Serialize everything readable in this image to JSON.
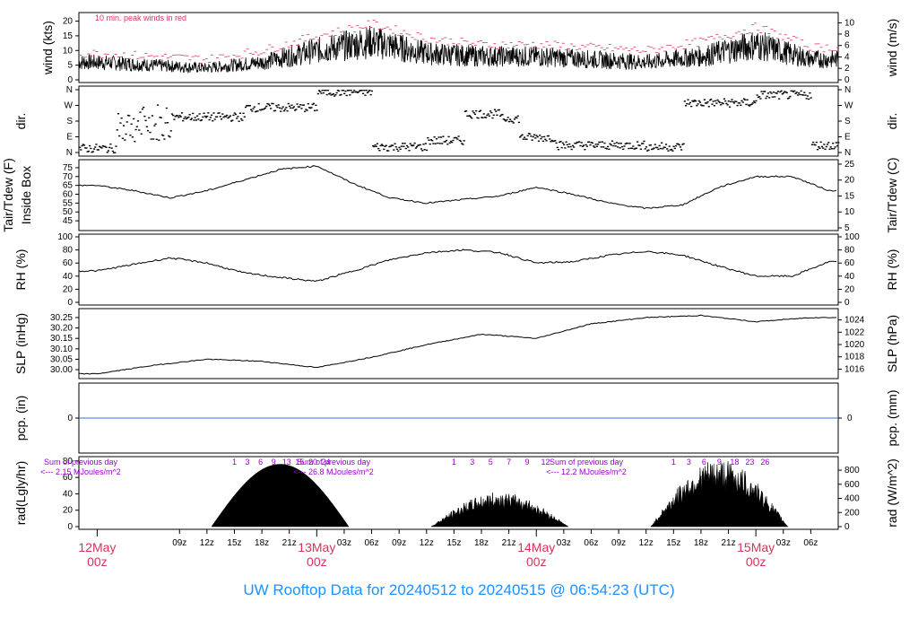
{
  "title": "UW Rooftop Data for 20240512  to  20240515 @ 06:54:23  (UTC)",
  "colors": {
    "title": "#1e90ff",
    "peak": "#d6335a",
    "precip": "#3a6fd8",
    "radtext": "#9900cc"
  },
  "chart_data": [
    {
      "type": "line",
      "name": "wind",
      "ylabel_left": "wind (kts)",
      "ylabel_right": "wind (m/s)",
      "annotation": "10 min. peak winds in red",
      "ylim": [
        0,
        22
      ],
      "yticks_left": [
        "0",
        "5",
        "10",
        "15",
        "20"
      ],
      "yticks_right": [
        "0",
        "2",
        "4",
        "6",
        "8",
        "10"
      ],
      "x_hours": [
        0,
        6,
        12,
        18,
        24,
        30,
        36,
        42,
        48,
        54,
        60,
        66,
        72,
        78
      ],
      "mean_kts": [
        6,
        5,
        4,
        6,
        10,
        13,
        9,
        8,
        8,
        7,
        6,
        8,
        12,
        7
      ],
      "peak_kts": [
        9,
        8,
        7,
        10,
        15,
        19,
        14,
        12,
        12,
        11,
        10,
        13,
        18,
        11
      ]
    },
    {
      "type": "scatter",
      "name": "dir",
      "ylabel": "dir.",
      "yticks": [
        "N",
        "W",
        "S",
        "E",
        "N"
      ]
    },
    {
      "type": "line",
      "name": "temp",
      "ylabel_left": "Tair/Tdew (F)",
      "ylabel_left2": "Inside Box",
      "ylabel_right": "Tair/Tdew (C)",
      "yticks_left": [
        "45",
        "50",
        "55",
        "60",
        "65",
        "70",
        "75"
      ],
      "yticks_right": [
        "5",
        "10",
        "15",
        "20",
        "25"
      ],
      "ylim": [
        41,
        78
      ],
      "x_hours": [
        0,
        4,
        8,
        12,
        16,
        20,
        24,
        28,
        32,
        36,
        40,
        44,
        48,
        52,
        56,
        60,
        64,
        68,
        72,
        76,
        80
      ],
      "values": [
        65,
        62,
        58,
        62,
        68,
        74,
        76,
        66,
        58,
        55,
        57,
        59,
        64,
        60,
        55,
        52,
        54,
        64,
        70,
        70,
        62
      ]
    },
    {
      "type": "line",
      "name": "rh",
      "ylabel": "RH (%)",
      "yticks": [
        "0",
        "20",
        "40",
        "60",
        "80",
        "100"
      ],
      "ylim": [
        0,
        100
      ],
      "x_hours": [
        0,
        4,
        8,
        12,
        16,
        20,
        24,
        28,
        32,
        36,
        40,
        44,
        48,
        52,
        56,
        60,
        64,
        68,
        72,
        76,
        80
      ],
      "values": [
        48,
        58,
        68,
        60,
        45,
        38,
        32,
        48,
        65,
        76,
        80,
        76,
        60,
        62,
        72,
        78,
        72,
        55,
        40,
        40,
        62
      ]
    },
    {
      "type": "line",
      "name": "slp",
      "ylabel_left": "SLP (inHg)",
      "ylabel_right": "SLP (hPa)",
      "yticks_left": [
        "30.00",
        "30.05",
        "30.10",
        "30.15",
        "30.20",
        "30.25"
      ],
      "yticks_right": [
        "1016",
        "1018",
        "1020",
        "1022",
        "1024"
      ],
      "ylim": [
        29.97,
        30.28
      ],
      "x_hours": [
        0,
        6,
        12,
        18,
        24,
        30,
        36,
        42,
        48,
        54,
        60,
        66,
        72,
        78,
        80
      ],
      "values": [
        29.98,
        30.02,
        30.05,
        30.04,
        30.01,
        30.06,
        30.12,
        30.17,
        30.15,
        30.22,
        30.25,
        30.26,
        30.23,
        30.25,
        30.25
      ]
    },
    {
      "type": "line",
      "name": "pcp",
      "ylabel_left": "pcp. (in)",
      "ylabel_right": "pcp. (mm)",
      "left_tick": "0",
      "right_tick": "0",
      "values": [
        0
      ]
    },
    {
      "type": "area",
      "name": "rad",
      "ylabel_left": "rad(Lgly/hr)",
      "ylabel_right": "rad (W/m^2)",
      "yticks_left": [
        "0",
        "20",
        "40",
        "60",
        "80"
      ],
      "yticks_right": [
        "0",
        "200",
        "400",
        "600",
        "800"
      ],
      "ylim": [
        0,
        82
      ],
      "days": [
        {
          "sum_label": "Sum of previous day",
          "sum_value": "<--- 2.15 MJoules/m^2",
          "hours_label": [
            "1",
            "3",
            "6",
            "9",
            "13",
            "15",
            "20",
            "24"
          ],
          "start": 12.5,
          "end": 27.5,
          "peak": 76,
          "jagged": false
        },
        {
          "sum_label": "Sum of previous day",
          "sum_value": "<--- 26.8 MJoules/m^2",
          "hours_label": [
            "1",
            "3",
            "5",
            "7",
            "9",
            "12"
          ],
          "start": 36.5,
          "end": 51.5,
          "peak": 40,
          "jagged": true
        },
        {
          "sum_label": "Sum of previous day",
          "sum_value": "<--- 12.2 MJoules/m^2",
          "hours_label": [
            "1",
            "3",
            "6",
            "9",
            "18",
            "23",
            "26"
          ],
          "start": 60.5,
          "end": 75.5,
          "peak": 78,
          "jagged": true
        }
      ]
    }
  ],
  "xaxis": {
    "hour_ticks": [
      "09z",
      "12z",
      "15z",
      "18z",
      "21z",
      "03z",
      "06z",
      "09z",
      "12z",
      "15z",
      "18z",
      "21z",
      "03z",
      "06z",
      "09z",
      "12z",
      "15z",
      "18z",
      "21z",
      "03z",
      "06z"
    ],
    "day_labels": [
      {
        "date": "12May",
        "time": "00z"
      },
      {
        "date": "13May",
        "time": "00z"
      },
      {
        "date": "14May",
        "time": "00z"
      },
      {
        "date": "15May",
        "time": "00z"
      }
    ]
  }
}
